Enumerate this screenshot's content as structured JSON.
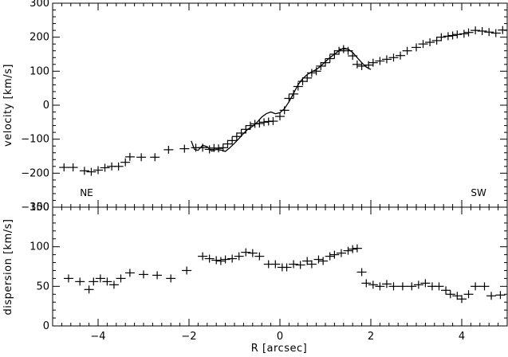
{
  "chart_data": [
    {
      "type": "scatter",
      "panel": "velocity",
      "xlabel": "",
      "ylabel": "velocity [km/s]",
      "xlim": [
        -5.0,
        5.0
      ],
      "ylim": [
        -300,
        300
      ],
      "xticks": [
        -4,
        -2,
        0,
        2,
        4
      ],
      "yticks": [
        -300,
        -200,
        -100,
        0,
        100,
        200,
        300
      ],
      "ytick_labels": [
        "−300",
        "−200",
        "−100",
        "0",
        "100",
        "200",
        "300"
      ],
      "annotations": [
        {
          "text": "NE",
          "x": -4.4,
          "y": -255
        },
        {
          "text": "SW",
          "x": 4.2,
          "y": -255
        }
      ],
      "series": [
        {
          "style": "cross",
          "x": [
            -4.75,
            -4.55,
            -4.3,
            -4.15,
            -4.0,
            -3.85,
            -3.7,
            -3.55,
            -3.4,
            -3.3,
            -3.05,
            -2.75,
            -2.45,
            -2.1,
            -1.85,
            -1.7,
            -1.55,
            -1.45,
            -1.35,
            -1.25,
            -1.15,
            -1.05,
            -0.95,
            -0.85,
            -0.75,
            -0.65,
            -0.55,
            -0.45,
            -0.35,
            -0.25,
            -0.15,
            0.0,
            0.1,
            0.2,
            0.3,
            0.4,
            0.5,
            0.6,
            0.7,
            0.8,
            0.9,
            1.0,
            1.1,
            1.2,
            1.3,
            1.4,
            1.5,
            1.6,
            1.7,
            1.8,
            1.95,
            2.05,
            2.2,
            2.35,
            2.5,
            2.65,
            2.8,
            3.0,
            3.15,
            3.3,
            3.45,
            3.55,
            3.7,
            3.8,
            3.9,
            4.05,
            4.15,
            4.3,
            4.45,
            4.6,
            4.75,
            4.9
          ],
          "y": [
            -183,
            -183,
            -193,
            -196,
            -191,
            -184,
            -180,
            -180,
            -168,
            -152,
            -153,
            -153,
            -131,
            -128,
            -125,
            -125,
            -130,
            -126,
            -127,
            -125,
            -114,
            -104,
            -92,
            -82,
            -71,
            -60,
            -55,
            -54,
            -50,
            -48,
            -47,
            -33,
            -15,
            20,
            33,
            55,
            70,
            80,
            95,
            100,
            115,
            125,
            137,
            150,
            160,
            165,
            160,
            145,
            120,
            115,
            118,
            125,
            130,
            135,
            140,
            146,
            160,
            170,
            180,
            185,
            190,
            200,
            203,
            205,
            208,
            210,
            214,
            220,
            218,
            215,
            212,
            221
          ]
        },
        {
          "style": "line",
          "x": [
            -1.95,
            -1.88,
            -1.8,
            -1.7,
            -1.6,
            -1.5,
            -1.4,
            -1.3,
            -1.2,
            -1.1,
            -1.0,
            -0.9,
            -0.8,
            -0.7,
            -0.6,
            -0.5,
            -0.4,
            -0.3,
            -0.2,
            -0.1,
            0.0,
            0.1,
            0.2,
            0.3,
            0.4,
            0.5,
            0.6,
            0.7,
            0.8,
            0.9,
            1.0,
            1.1,
            1.2,
            1.3,
            1.4,
            1.5,
            1.6,
            1.7,
            1.8,
            1.9,
            2.0
          ],
          "y": [
            -105,
            -130,
            -133,
            -118,
            -122,
            -135,
            -130,
            -132,
            -136,
            -125,
            -112,
            -98,
            -83,
            -70,
            -62,
            -50,
            -35,
            -25,
            -20,
            -25,
            -22,
            -10,
            10,
            35,
            60,
            78,
            90,
            98,
            105,
            115,
            128,
            140,
            150,
            160,
            168,
            165,
            155,
            140,
            125,
            112,
            105
          ]
        }
      ]
    },
    {
      "type": "scatter",
      "panel": "dispersion",
      "xlabel": "R [arcsec]",
      "ylabel": "dispersion [km/s]",
      "xlim": [
        -5.0,
        5.0
      ],
      "ylim": [
        0,
        150
      ],
      "xticks": [
        -4,
        -2,
        0,
        2,
        4
      ],
      "xtick_labels": [
        "−4",
        "−2",
        "0",
        "2",
        "4"
      ],
      "yticks": [
        0,
        50,
        100,
        150
      ],
      "ytick_labels": [
        "0",
        "50",
        "100",
        "150"
      ],
      "series": [
        {
          "style": "cross",
          "x": [
            -4.65,
            -4.4,
            -4.2,
            -4.1,
            -3.95,
            -3.8,
            -3.65,
            -3.5,
            -3.3,
            -3.0,
            -2.7,
            -2.4,
            -2.05,
            -1.7,
            -1.55,
            -1.4,
            -1.3,
            -1.2,
            -1.05,
            -0.9,
            -0.75,
            -0.6,
            -0.45,
            -0.25,
            -0.1,
            0.05,
            0.15,
            0.3,
            0.45,
            0.6,
            0.7,
            0.85,
            0.95,
            1.1,
            1.2,
            1.35,
            1.5,
            1.6,
            1.7,
            1.8,
            1.9,
            2.05,
            2.2,
            2.35,
            2.5,
            2.7,
            2.9,
            3.05,
            3.2,
            3.35,
            3.5,
            3.65,
            3.75,
            3.9,
            4.0,
            4.15,
            4.3,
            4.5,
            4.65,
            4.85
          ],
          "y": [
            60,
            56,
            46,
            56,
            60,
            56,
            52,
            60,
            67,
            65,
            64,
            60,
            70,
            88,
            85,
            83,
            82,
            84,
            85,
            88,
            93,
            92,
            88,
            78,
            78,
            74,
            74,
            78,
            77,
            82,
            78,
            84,
            82,
            88,
            90,
            92,
            95,
            97,
            98,
            68,
            54,
            52,
            50,
            53,
            50,
            50,
            50,
            52,
            54,
            50,
            50,
            45,
            40,
            38,
            34,
            40,
            50,
            50,
            38,
            39
          ]
        }
      ]
    }
  ]
}
